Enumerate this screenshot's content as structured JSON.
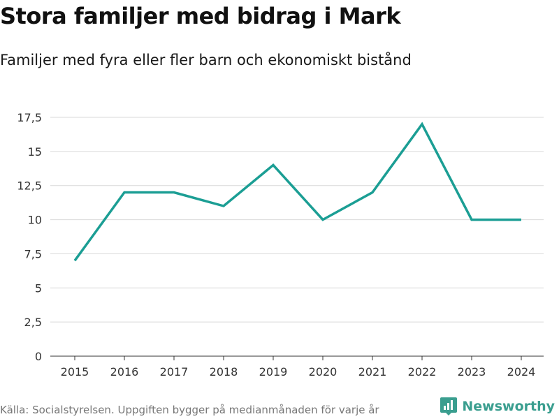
{
  "title": "Stora familjer med bidrag i Mark",
  "subtitle": "Familjer med fyra eller fler barn och ekonomiskt bistånd",
  "source": "Källa: Socialstyrelsen. Uppgiften bygger på medianmånaden för varje år",
  "brand": {
    "name": "Newsworthy",
    "icon": "newsworthy-logo-icon",
    "color": "#3a9e8f"
  },
  "colors": {
    "line": "#1b9e94",
    "grid": "#d9d9d9",
    "axis": "#333333"
  },
  "chart_data": {
    "type": "line",
    "title": "Stora familjer med bidrag i Mark",
    "subtitle": "Familjer med fyra eller fler barn och ekonomiskt bistånd",
    "xlabel": "",
    "ylabel": "",
    "x": [
      "2015",
      "2016",
      "2017",
      "2018",
      "2019",
      "2020",
      "2021",
      "2022",
      "2023",
      "2024"
    ],
    "series": [
      {
        "name": "Familjer",
        "values": [
          7,
          12,
          12,
          11,
          14,
          10,
          12,
          17,
          10,
          10
        ]
      }
    ],
    "ylim": [
      0,
      17.5
    ],
    "yticks": [
      0,
      2.5,
      5,
      7.5,
      10,
      12.5,
      15,
      17.5
    ],
    "ytick_labels": [
      "0",
      "2,5",
      "5",
      "7,5",
      "10",
      "12,5",
      "15",
      "17,5"
    ],
    "grid": true,
    "legend": "none"
  }
}
